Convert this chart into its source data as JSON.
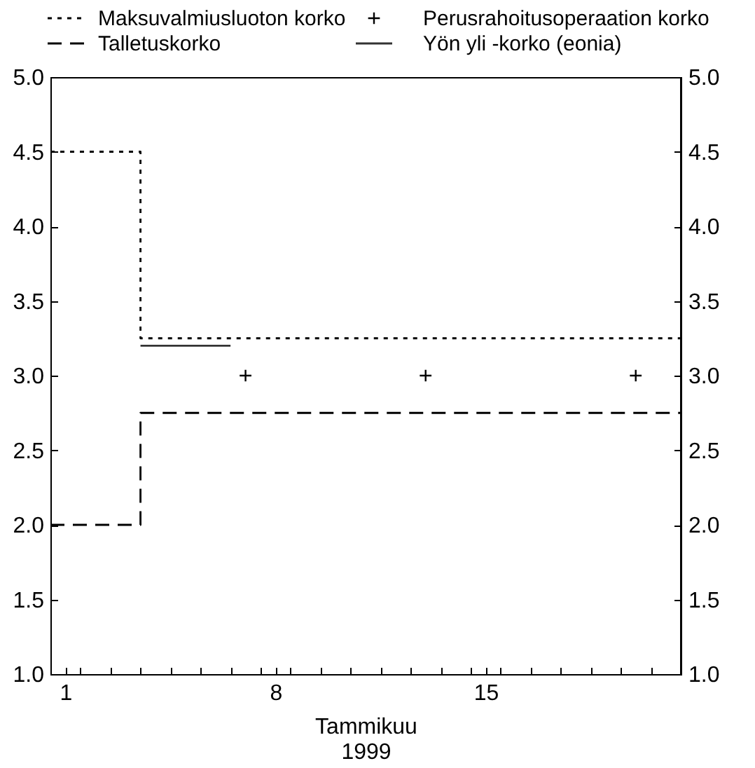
{
  "chart_data": {
    "type": "step",
    "xlabel": "Tammikuu\n1999",
    "legend": "top",
    "grid": false,
    "xlim": [
      0.5,
      21.5
    ],
    "xticks": [
      {
        "value": 0.5,
        "label": null
      },
      {
        "value": 1,
        "label": "1"
      },
      {
        "value": 1.5,
        "label": null
      },
      {
        "value": 2.5,
        "label": null
      },
      {
        "value": 3.5,
        "label": null
      },
      {
        "value": 4.5,
        "label": null
      },
      {
        "value": 5.5,
        "label": null
      },
      {
        "value": 6.5,
        "label": null
      },
      {
        "value": 7.5,
        "label": null
      },
      {
        "value": 8,
        "label": "8"
      },
      {
        "value": 8.5,
        "label": null
      },
      {
        "value": 9.5,
        "label": null
      },
      {
        "value": 10.5,
        "label": null
      },
      {
        "value": 11.5,
        "label": null
      },
      {
        "value": 12.5,
        "label": null
      },
      {
        "value": 13.5,
        "label": null
      },
      {
        "value": 14.5,
        "label": null
      },
      {
        "value": 15,
        "label": "15"
      },
      {
        "value": 15.5,
        "label": null
      },
      {
        "value": 16.5,
        "label": null
      },
      {
        "value": 17.5,
        "label": null
      },
      {
        "value": 18.5,
        "label": null
      },
      {
        "value": 19.5,
        "label": null
      },
      {
        "value": 20.5,
        "label": null
      },
      {
        "value": 21.5,
        "label": null
      }
    ],
    "ylim": [
      1,
      5
    ],
    "yticks": [
      {
        "value": 1,
        "label": "1.0"
      },
      {
        "value": 1.5,
        "label": "1.5"
      },
      {
        "value": 2,
        "label": "2.0"
      },
      {
        "value": 2.5,
        "label": "2.5"
      },
      {
        "value": 3,
        "label": "3.0"
      },
      {
        "value": 3.5,
        "label": "3.5"
      },
      {
        "value": 4,
        "label": "4.0"
      },
      {
        "value": 4.5,
        "label": "4.5"
      },
      {
        "value": 5,
        "label": "5.0"
      }
    ],
    "y2lim": [
      1,
      5
    ],
    "y2ticks": [
      {
        "value": 1,
        "label": "1.0"
      },
      {
        "value": 1.5,
        "label": "1.5"
      },
      {
        "value": 2,
        "label": "2.0"
      },
      {
        "value": 2.5,
        "label": "2.5"
      },
      {
        "value": 3,
        "label": "3.0"
      },
      {
        "value": 3.5,
        "label": "3.5"
      },
      {
        "value": 4,
        "label": "4.0"
      },
      {
        "value": 4.5,
        "label": "4.5"
      },
      {
        "value": 5,
        "label": "5.0"
      }
    ],
    "series": [
      {
        "name": "Maksuvalmiusluoton korko",
        "line_style": "dotted",
        "color": "#000000",
        "x": [
          0.5,
          3.5,
          21.5
        ],
        "values": [
          4.5,
          3.25,
          3.25
        ]
      },
      {
        "name": "Talletuskorko",
        "line_style": "dashed",
        "color": "#000000",
        "x": [
          0.5,
          3.5,
          21.5
        ],
        "values": [
          2.0,
          2.75,
          2.75
        ]
      },
      {
        "name": "Perusrahoitusoperaation korko",
        "type": "scatter",
        "marker": "cross",
        "color": "#000000",
        "x": [
          7,
          13,
          20
        ],
        "values": [
          3.0,
          3.0,
          3.0
        ]
      },
      {
        "name": "Yön yli -korko (eonia)",
        "type": "line",
        "line_style": "solid",
        "color": "#333333",
        "x": [
          3.5,
          6.5
        ],
        "values": [
          3.2,
          3.2
        ]
      }
    ]
  }
}
